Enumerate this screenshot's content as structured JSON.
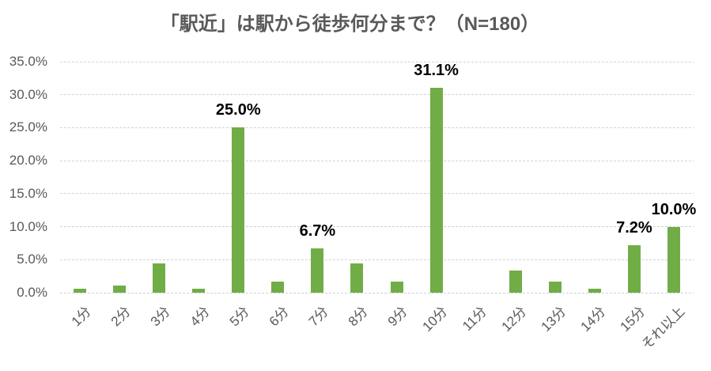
{
  "chart_data": {
    "type": "bar",
    "title": "「駅近」は駅から徒歩何分まで？（N=180）",
    "categories": [
      "1分",
      "2分",
      "3分",
      "4分",
      "5分",
      "6分",
      "7分",
      "8分",
      "9分",
      "10分",
      "11分",
      "12分",
      "13分",
      "14分",
      "15分",
      "それ以上"
    ],
    "values": [
      0.6,
      1.1,
      4.4,
      0.6,
      25.0,
      1.7,
      6.7,
      4.4,
      1.7,
      31.1,
      0.0,
      3.3,
      1.7,
      0.6,
      7.2,
      10.0
    ],
    "data_labels": [
      "",
      "",
      "",
      "",
      "25.0%",
      "",
      "6.7%",
      "",
      "",
      "31.1%",
      "",
      "",
      "",
      "",
      "7.2%",
      "10.0%"
    ],
    "y_ticks": [
      "0.0%",
      "5.0%",
      "10.0%",
      "15.0%",
      "20.0%",
      "25.0%",
      "30.0%",
      "35.0%"
    ],
    "ylim": [
      0,
      35
    ],
    "xlabel": "",
    "ylabel": "",
    "grid": true,
    "legend": "none",
    "bar_color": "#70AD47",
    "gridline_color": "#D2D2D2",
    "title_color": "#595959",
    "axis_label_color": "#595959",
    "data_label_color": "#000000"
  }
}
